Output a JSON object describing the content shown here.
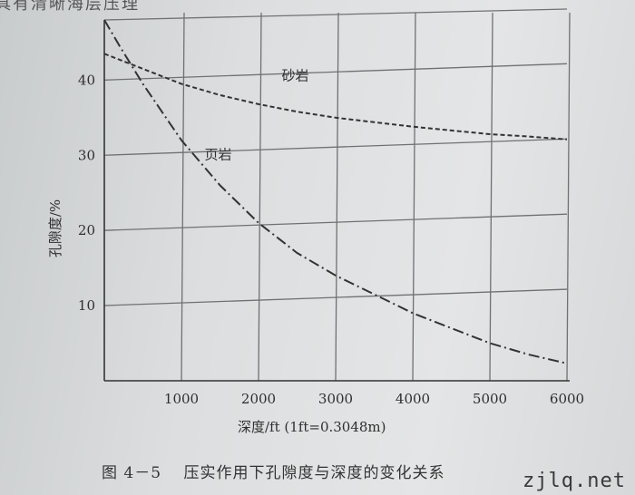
{
  "page": {
    "top_text": "具有清晰海层压理",
    "caption_number": "图 4－5",
    "caption_title": "压实作用下孔隙度与深度的变化关系",
    "watermark": "zjlq.net"
  },
  "chart_data": {
    "type": "line",
    "xlabel": "深度/ft (1ft=0.3048m)",
    "ylabel": "孔隙度/%",
    "xlim": [
      0,
      6000
    ],
    "ylim": [
      0,
      48
    ],
    "xticks": [
      1000,
      2000,
      3000,
      4000,
      5000,
      6000
    ],
    "yticks": [
      10,
      20,
      30,
      40
    ],
    "grid": true,
    "series": [
      {
        "name": "砂岩",
        "style": "dashed",
        "x": [
          0,
          500,
          1000,
          1500,
          2000,
          2500,
          3000,
          3500,
          4000,
          4500,
          5000,
          5500,
          6000
        ],
        "y": [
          43.5,
          41.5,
          39.5,
          38,
          36.8,
          35.8,
          35,
          34.4,
          33.8,
          33.3,
          32.8,
          32.5,
          32.1
        ]
      },
      {
        "name": "页岩",
        "style": "dashdot",
        "x": [
          0,
          200,
          500,
          1000,
          1500,
          2000,
          2500,
          3000,
          3500,
          4000,
          4500,
          5000,
          5500,
          6000
        ],
        "y": [
          48,
          44.5,
          39.5,
          32,
          26,
          21,
          17,
          14,
          11.5,
          9,
          7,
          5,
          3.5,
          2.3
        ]
      }
    ],
    "colors": {
      "line": "#333333",
      "grid": "#6f7173"
    }
  }
}
